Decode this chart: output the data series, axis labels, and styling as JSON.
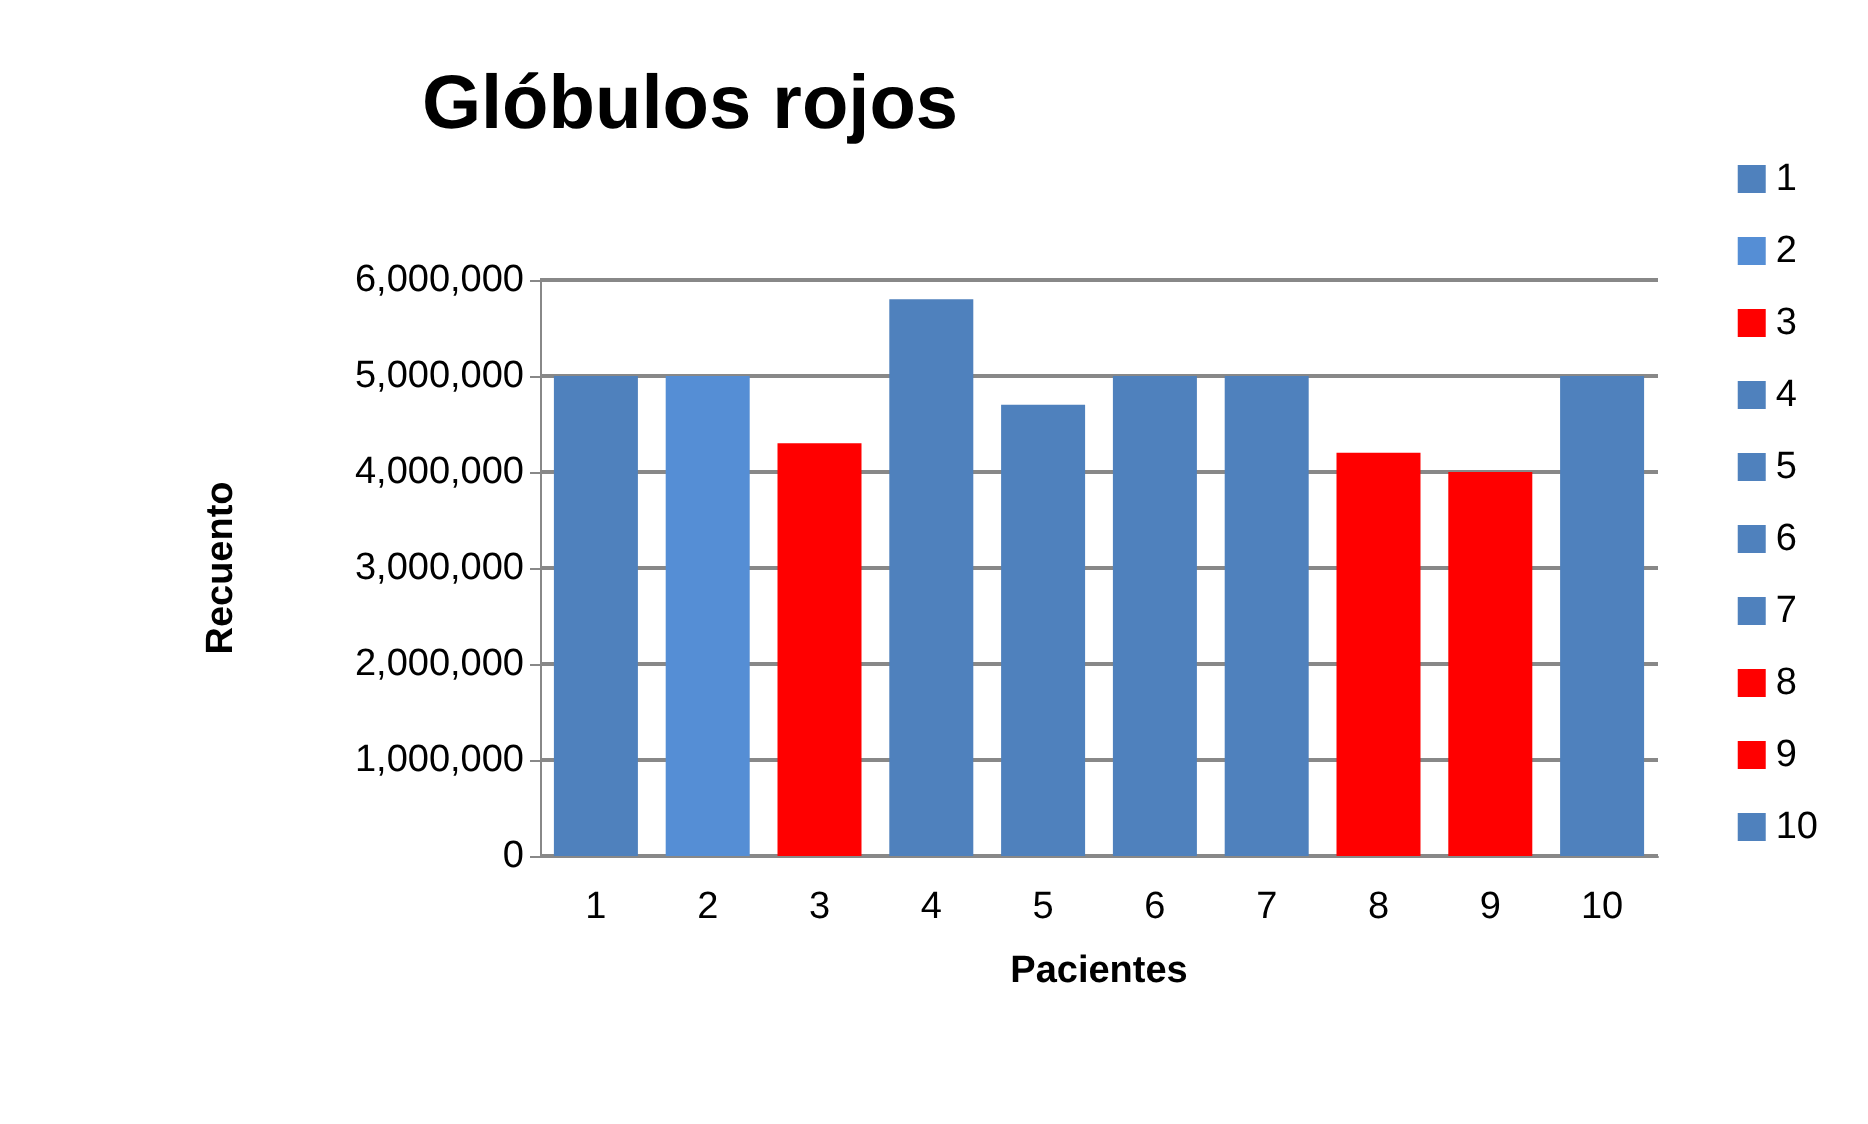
{
  "chart_data": {
    "type": "bar",
    "title": "Glóbulos rojos",
    "xlabel": "Pacientes",
    "ylabel": "Recuento",
    "categories": [
      "1",
      "2",
      "3",
      "4",
      "5",
      "6",
      "7",
      "8",
      "9",
      "10"
    ],
    "series": [
      {
        "name": "1",
        "color": "#4f81bd",
        "values": [
          5000000,
          null,
          null,
          null,
          null,
          null,
          null,
          null,
          null,
          null
        ]
      },
      {
        "name": "2",
        "color": "#558ed5",
        "values": [
          null,
          5000000,
          null,
          null,
          null,
          null,
          null,
          null,
          null,
          null
        ]
      },
      {
        "name": "3",
        "color": "#ff0000",
        "values": [
          null,
          null,
          4300000,
          null,
          null,
          null,
          null,
          null,
          null,
          null
        ]
      },
      {
        "name": "4",
        "color": "#4f81bd",
        "values": [
          null,
          null,
          null,
          5800000,
          null,
          null,
          null,
          null,
          null,
          null
        ]
      },
      {
        "name": "5",
        "color": "#4f81bd",
        "values": [
          null,
          null,
          null,
          null,
          4700000,
          null,
          null,
          null,
          null,
          null
        ]
      },
      {
        "name": "6",
        "color": "#4f81bd",
        "values": [
          null,
          null,
          null,
          null,
          null,
          5000000,
          null,
          null,
          null,
          null
        ]
      },
      {
        "name": "7",
        "color": "#4f81bd",
        "values": [
          null,
          null,
          null,
          null,
          null,
          null,
          5000000,
          null,
          null,
          null
        ]
      },
      {
        "name": "8",
        "color": "#ff0000",
        "values": [
          null,
          null,
          null,
          null,
          null,
          null,
          null,
          4200000,
          null,
          null
        ]
      },
      {
        "name": "9",
        "color": "#ff0000",
        "values": [
          null,
          null,
          null,
          null,
          null,
          null,
          null,
          null,
          4000000,
          null
        ]
      },
      {
        "name": "10",
        "color": "#4f81bd",
        "values": [
          null,
          null,
          null,
          null,
          null,
          null,
          null,
          null,
          null,
          5000000
        ]
      }
    ],
    "ylim": [
      0,
      6000000
    ],
    "yticks": [
      {
        "value": 0,
        "label": "0"
      },
      {
        "value": 1000000,
        "label": "1,000,000"
      },
      {
        "value": 2000000,
        "label": "2,000,000"
      },
      {
        "value": 3000000,
        "label": "3,000,000"
      },
      {
        "value": 4000000,
        "label": "4,000,000"
      },
      {
        "value": 5000000,
        "label": "5,000,000"
      },
      {
        "value": 6000000,
        "label": "6,000,000"
      }
    ],
    "grid": "y",
    "legend": "right"
  }
}
